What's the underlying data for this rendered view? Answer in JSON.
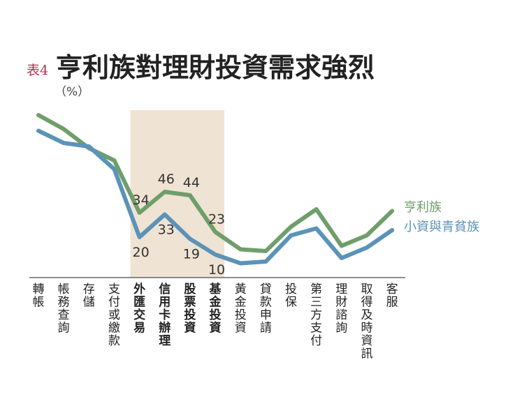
{
  "chart_data": {
    "type": "line",
    "label_prefix": "表4",
    "title": "亨利族對理財投資需求強烈",
    "unit": "（%）",
    "categories": [
      "轉帳",
      "帳務查詢",
      "存儲",
      "支付或繳款",
      "外匯交易",
      "信用卡辦理",
      "股票投資",
      "基金投資",
      "黃金投資",
      "貸款申請",
      "投保",
      "第三方支付",
      "理財諮詢",
      "取得及時資訊",
      "客服"
    ],
    "highlighted_categories": [
      "外匯交易",
      "信用卡辦理",
      "股票投資",
      "基金投資"
    ],
    "series": [
      {
        "name": "亨利族",
        "color": "#6f9e6a",
        "values": [
          90,
          82,
          71,
          64,
          34,
          46,
          44,
          23,
          13,
          12,
          26,
          36,
          15,
          21,
          35
        ],
        "labeled": {
          "4": "34",
          "5": "46",
          "6": "44",
          "7": "23"
        }
      },
      {
        "name": "小資與青貧族",
        "color": "#5b93b8",
        "values": [
          81,
          74,
          72,
          59,
          20,
          33,
          19,
          10,
          5,
          6,
          21,
          25,
          8,
          14,
          24
        ],
        "labeled": {
          "4": "20",
          "5": "33",
          "6": "19",
          "7": "10"
        }
      }
    ],
    "ylim": [
      0,
      95
    ],
    "grid": false,
    "legend": "right, at line ends",
    "colors": {
      "prefix": "#b03050",
      "highlight_band": "#efe3d3",
      "axis": "#666666"
    }
  }
}
